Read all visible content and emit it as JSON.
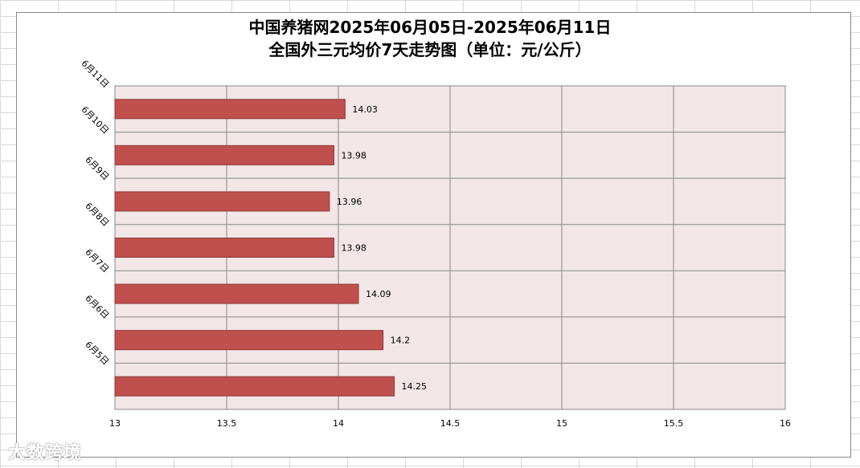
{
  "chart_data": {
    "type": "bar",
    "orientation": "horizontal",
    "title_line1": "中国养猪网2025年06月05日-2025年06月11日",
    "title_line2": "全国外三元均价7天走势图（单位：元/公斤）",
    "categories": [
      "6月5日",
      "6月6日",
      "6月7日",
      "6月8日",
      "6月9日",
      "6月10日",
      "6月11日"
    ],
    "values": [
      14.25,
      14.2,
      14.09,
      13.98,
      13.96,
      13.98,
      14.03
    ],
    "data_labels": [
      "14.25",
      "14.2",
      "14.09",
      "13.98",
      "13.96",
      "13.98",
      "14.03"
    ],
    "xlim": [
      13,
      16
    ],
    "x_ticks": [
      "13",
      "13.5",
      "14",
      "14.5",
      "15",
      "15.5",
      "16"
    ],
    "grid": true,
    "legend": "none",
    "colors": {
      "bar": "#c0504d",
      "bar_border": "#8c3836",
      "plot_bg": "#f2e6e6",
      "grid": "#888888"
    }
  },
  "watermark": "大数跨境"
}
